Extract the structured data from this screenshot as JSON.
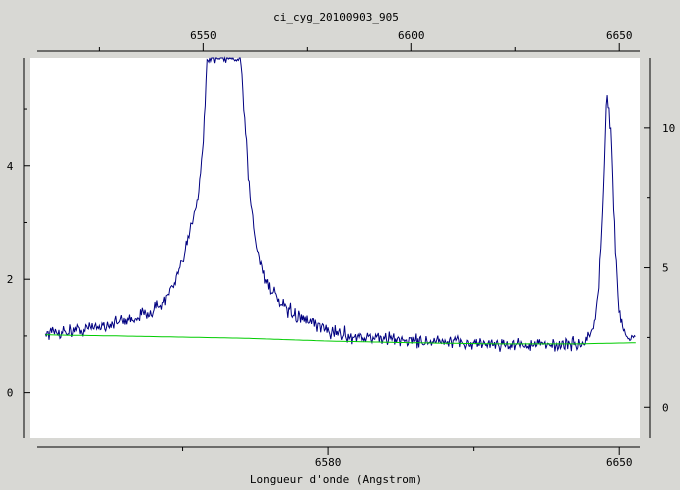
{
  "chart_data": {
    "type": "line",
    "title": "ci_cyg_20100903_905",
    "xlabel": "Longueur d'onde (Angstrom)",
    "ylabel": "",
    "x_top": {
      "range": [
        6510,
        6655
      ],
      "ticks": [
        6550,
        6600,
        6650
      ],
      "tick_labels": [
        "6550",
        "6600",
        "6650"
      ]
    },
    "x_bottom": {
      "range": [
        6510,
        6655
      ],
      "ticks": [
        6580,
        6650
      ],
      "tick_labels": [
        "6580",
        "6650"
      ]
    },
    "y_left": {
      "range": [
        -0.8,
        5.9
      ],
      "ticks": [
        0,
        2,
        4
      ],
      "tick_labels": [
        "0",
        "2",
        "4"
      ]
    },
    "y_right": {
      "range": [
        -1.1,
        12.5
      ],
      "ticks": [
        0,
        5,
        10
      ],
      "tick_labels": [
        "0",
        "5",
        "10"
      ]
    },
    "grid": false,
    "series": [
      {
        "color": "#000080",
        "y_axis": "left",
        "noise": 0.12,
        "x": [
          6512,
          6520,
          6530,
          6535,
          6540,
          6543,
          6545,
          6547,
          6549,
          6550,
          6551,
          6552,
          6553,
          6554,
          6555,
          6556,
          6557,
          6558,
          6559,
          6560,
          6561,
          6562,
          6563,
          6565,
          6568,
          6570,
          6575,
          6580,
          6585,
          6590,
          6600,
          6610,
          6620,
          6630,
          6640,
          6642,
          6644,
          6645,
          6646,
          6647,
          6648,
          6649,
          6650,
          6652,
          6654
        ],
        "y": [
          1.05,
          1.1,
          1.25,
          1.35,
          1.55,
          1.9,
          2.3,
          2.9,
          3.6,
          4.4,
          5.9,
          5.9,
          5.9,
          5.9,
          5.9,
          5.9,
          5.9,
          5.9,
          5.9,
          4.8,
          3.7,
          3.0,
          2.5,
          2.0,
          1.6,
          1.45,
          1.25,
          1.1,
          1.0,
          0.97,
          0.92,
          0.88,
          0.86,
          0.84,
          0.85,
          0.9,
          1.2,
          1.8,
          3.2,
          5.3,
          4.6,
          2.6,
          1.4,
          0.95,
          0.9
        ]
      },
      {
        "color": "#00cc00",
        "y_axis": "left",
        "noise": 0,
        "x": [
          6512,
          6530,
          6560,
          6580,
          6600,
          6620,
          6640,
          6654
        ],
        "y": [
          1.02,
          1.0,
          0.96,
          0.91,
          0.88,
          0.86,
          0.86,
          0.88
        ]
      }
    ]
  }
}
